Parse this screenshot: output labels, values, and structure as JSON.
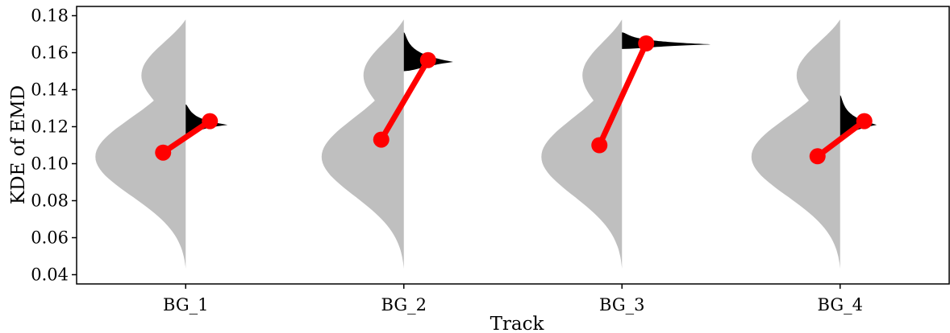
{
  "chart_data": {
    "type": "violin",
    "xlabel": "Track",
    "ylabel": "KDE of EMD",
    "ylim": [
      0.035,
      0.185
    ],
    "yticks": [
      0.04,
      0.06,
      0.08,
      0.1,
      0.12,
      0.14,
      0.16,
      0.18
    ],
    "ytick_labels": [
      "0.04",
      "0.06",
      "0.08",
      "0.10",
      "0.12",
      "0.14",
      "0.16",
      "0.18"
    ],
    "categories": [
      "BG_1",
      "BG_2",
      "BG_3",
      "BG_4"
    ],
    "colors": {
      "left_violin": "#bfbfbf",
      "right_violin": "#000000",
      "connector": "#ff0000"
    },
    "left_violin": {
      "y_min": 0.043,
      "y_max": 0.178,
      "peak": 0.104
    },
    "right_violins": [
      {
        "y_min": 0.116,
        "y_max": 0.132,
        "peak": 0.121
      },
      {
        "y_min": 0.15,
        "y_max": 0.171,
        "peak": 0.155
      },
      {
        "y_min": 0.162,
        "y_max": 0.171,
        "peak": 0.1645
      },
      {
        "y_min": 0.115,
        "y_max": 0.137,
        "peak": 0.121
      }
    ],
    "series": [
      {
        "values": [
          0.106,
          0.113,
          0.11,
          0.104
        ]
      },
      {
        "values": [
          0.123,
          0.156,
          0.165,
          0.123
        ]
      }
    ]
  }
}
